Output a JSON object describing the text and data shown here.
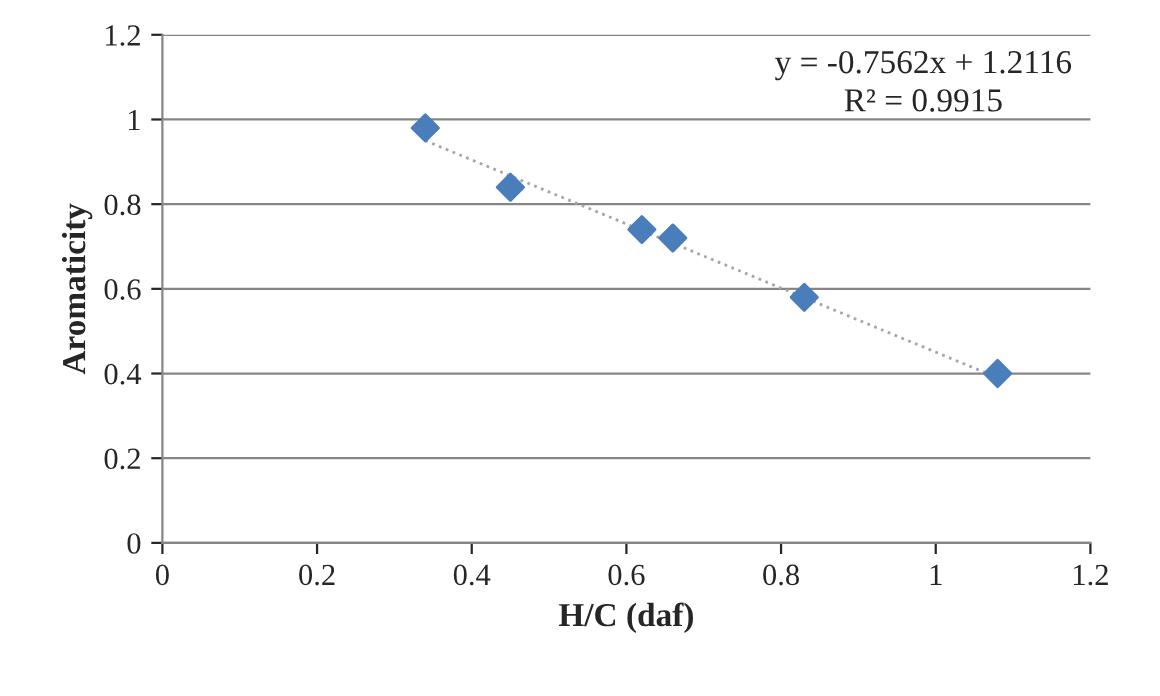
{
  "chart_data": {
    "type": "scatter",
    "xlabel": "H/C (daf)",
    "ylabel": "Aromaticity",
    "annotations": [
      "y = -0.7562x + 1.2116",
      "R² = 0.9915"
    ],
    "series": [
      {
        "color": "#4a7ebb",
        "x": [
          0.34,
          0.45,
          0.62,
          0.66,
          0.83,
          1.08
        ],
        "values": [
          0.98,
          0.84,
          0.74,
          0.72,
          0.58,
          0.4
        ],
        "marker": "diamond"
      },
      {
        "type": "line",
        "color": "#a6a6a6",
        "x": [
          0.34,
          1.08
        ],
        "values": [
          0.95,
          0.39
        ],
        "line_style": "dotted",
        "marker": "none"
      }
    ],
    "xlim": [
      0,
      1.2
    ],
    "xticks": [
      0,
      0.2,
      0.4,
      0.6,
      0.8,
      1,
      1.2
    ],
    "ylim": [
      0,
      1.2
    ],
    "yticks": [
      0,
      0.2,
      0.4,
      0.6,
      0.8,
      1,
      1.2
    ],
    "grid": "y"
  }
}
